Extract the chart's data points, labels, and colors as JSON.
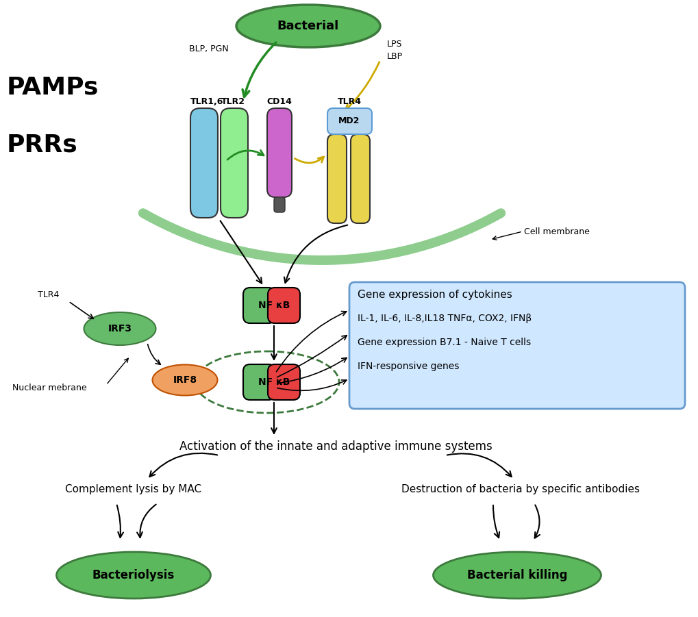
{
  "bg_color": "#ffffff",
  "pamps_label": "PAMPs",
  "prrs_label": "PRRs",
  "bacterial_label": "Bacterial",
  "blp_pgn_label": "BLP, PGN",
  "lps_label": "LPS",
  "lbp_label": "LBP",
  "tlr1_6_label": "TLR1,6",
  "tlr2_label": "TLR2",
  "cd14_label": "CD14",
  "tlr4_top_label": "TLR4",
  "md2_label": "MD2",
  "cell_membrane_label": "Cell membrane",
  "nfkb_label": "NF κB",
  "irf3_label": "IRF3",
  "irf8_label": "IRF8",
  "tlr4_side_label": "TLR4",
  "nuclear_membrane_label": "Nuclear mebrane",
  "info_box_lines": [
    "Gene expression of cytokines",
    "IL-1, IL-6, IL-8,IL18 TNFα, COX2, IFNβ",
    "Gene expression B7.1 - Naive T cells",
    "IFN-responsive genes"
  ],
  "activation_label": "Activation of the innate and adaptive immune systems",
  "complement_label": "Complement lysis by MAC",
  "destruction_label": "Destruction of bacteria by specific antibodies",
  "bacteriolysis_label": "Bacteriolysis",
  "bacterial_killing_label": "Bacterial killing",
  "green_oval_fill": "#5cb85c",
  "green_oval_edge": "#3d7a3d",
  "tlr1_color": "#7ec8e3",
  "tlr2_color": "#90ee90",
  "cd14_color": "#cc66cc",
  "tlr4_color": "#e8d44d",
  "md2_color": "#b8d8f0",
  "nf_green_color": "#66bb6a",
  "nf_red_color": "#e84040",
  "irf3_color": "#66bb6a",
  "irf8_color": "#f0a060",
  "cell_membrane_color": "#82c882",
  "info_box_bg": "#d0e8ff",
  "info_box_border": "#6699cc",
  "arrow_green": "#228B22",
  "arrow_yellow": "#ccaa00"
}
